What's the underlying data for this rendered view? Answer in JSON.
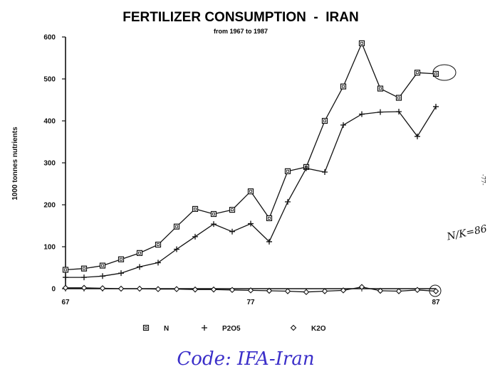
{
  "chart_data": {
    "type": "line",
    "title": "FERTILIZER CONSUMPTION  -  IRAN",
    "subtitle": "from 1967 to 1987",
    "ylabel": "1000 tonnes nutrients",
    "xlabel": "",
    "x": [
      67,
      68,
      69,
      70,
      71,
      72,
      73,
      74,
      75,
      76,
      77,
      78,
      79,
      80,
      81,
      82,
      83,
      84,
      85,
      86,
      87
    ],
    "xticks": [
      "67",
      "77",
      "87"
    ],
    "ylim": [
      0,
      600
    ],
    "yticks": [
      "0",
      "100",
      "200",
      "300",
      "400",
      "500",
      "600"
    ],
    "grid": false,
    "legend_position": "bottom",
    "series": [
      {
        "name": "N",
        "marker": "square",
        "values": [
          45,
          48,
          55,
          70,
          85,
          105,
          148,
          190,
          178,
          188,
          232,
          168,
          280,
          290,
          400,
          482,
          585,
          477,
          455,
          515,
          512
        ]
      },
      {
        "name": "P2O5",
        "marker": "plus",
        "values": [
          27,
          27,
          30,
          37,
          52,
          62,
          94,
          124,
          154,
          136,
          155,
          112,
          207,
          287,
          278,
          390,
          416,
          421,
          422,
          363,
          434
        ]
      },
      {
        "name": "K2O",
        "marker": "diamond",
        "values": [
          2,
          2,
          1,
          0,
          0,
          -1,
          -1,
          -2,
          -2,
          -3,
          -4,
          -5,
          -6,
          -8,
          -6,
          -4,
          4,
          -5,
          -6,
          -3,
          -6
        ]
      }
    ]
  },
  "annotations": {
    "side_note": "N/K=86",
    "page_mark": "-77-",
    "code_label": "Code: IFA-Iran"
  },
  "colors": {
    "ink": "#111111",
    "code_label": "#3b2fc9"
  }
}
